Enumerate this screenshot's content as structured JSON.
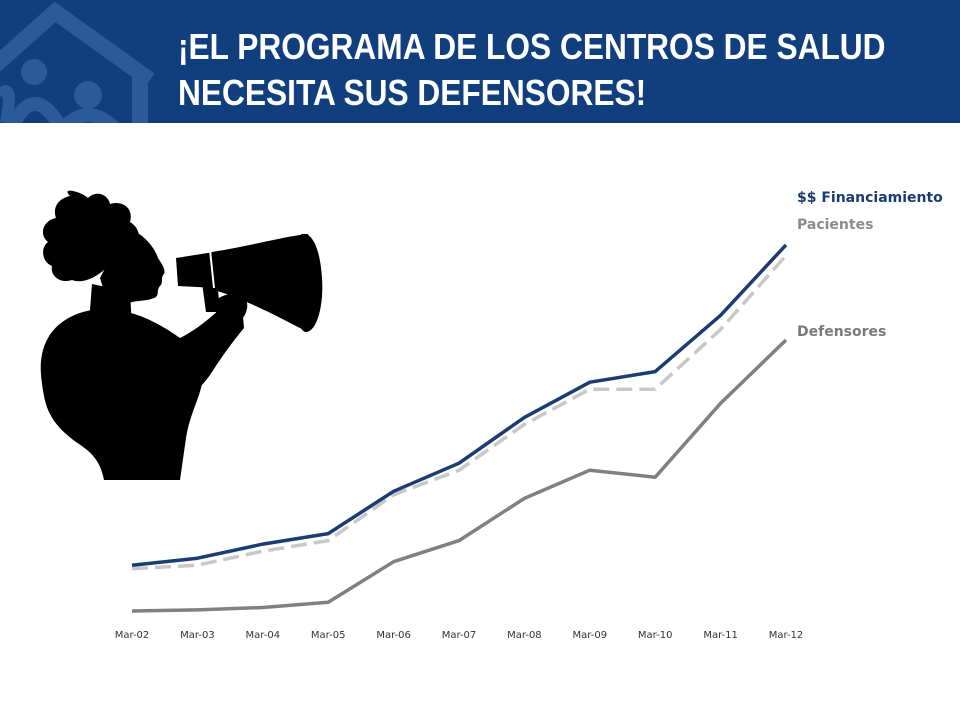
{
  "header": {
    "title_line1": "¡EL PROGRAMA DE LOS CENTROS DE SALUD",
    "title_line2": "NECESITA SUS DEFENSORES!"
  },
  "illustration": {
    "icon": "person-with-megaphone-icon",
    "logo": "house-logo-icon"
  },
  "colors": {
    "banner": "#113f7e",
    "funding": "#1a3c72",
    "patients": "#c8c8c8",
    "advocates": "#808080"
  },
  "chart_data": {
    "type": "line",
    "x": [
      "Mar-02",
      "Mar-03",
      "Mar-04",
      "Mar-05",
      "Mar-06",
      "Mar-07",
      "Mar-08",
      "Mar-09",
      "Mar-10",
      "Mar-11",
      "Mar-12"
    ],
    "ylim": [
      0,
      100
    ],
    "grid": false,
    "legend": "inline-right",
    "series": [
      {
        "name": "$$ Financiamiento",
        "color": "#1a3c72",
        "dash": false,
        "values": [
          13,
          15,
          19,
          22,
          34,
          42,
          55,
          65,
          68,
          84,
          104
        ]
      },
      {
        "name": "Pacientes",
        "color": "#c8c8c8",
        "dash": true,
        "values": [
          12,
          13,
          17,
          20,
          33,
          40,
          53,
          63,
          63,
          80,
          101
        ]
      },
      {
        "name": "Defensores",
        "color": "#808080",
        "dash": false,
        "values": [
          0,
          0.3,
          1,
          2.5,
          14,
          20,
          32,
          40,
          38,
          59,
          77
        ]
      }
    ]
  }
}
